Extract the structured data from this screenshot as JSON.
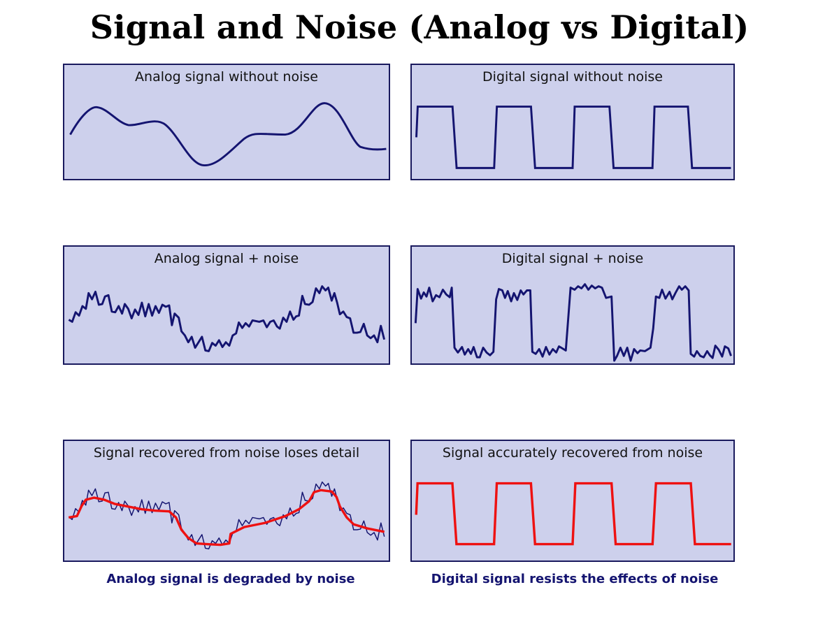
{
  "title": "Signal and Noise (Analog vs Digital)",
  "panels": {
    "analog_clean": "Analog signal without noise",
    "digital_clean": "Digital signal without noise",
    "analog_noisy": "Analog signal + noise",
    "digital_noisy": "Digital signal + noise",
    "analog_recovered": "Signal recovered from noise loses detail",
    "digital_recovered": "Signal accurately recovered from noise"
  },
  "captions": {
    "analog": "Analog signal is degraded by noise",
    "digital": "Digital signal resists the effects of noise"
  },
  "colors": {
    "panel_bg": "#cdd0ec",
    "signal": "#141470",
    "recovered": "#ee1111"
  }
}
